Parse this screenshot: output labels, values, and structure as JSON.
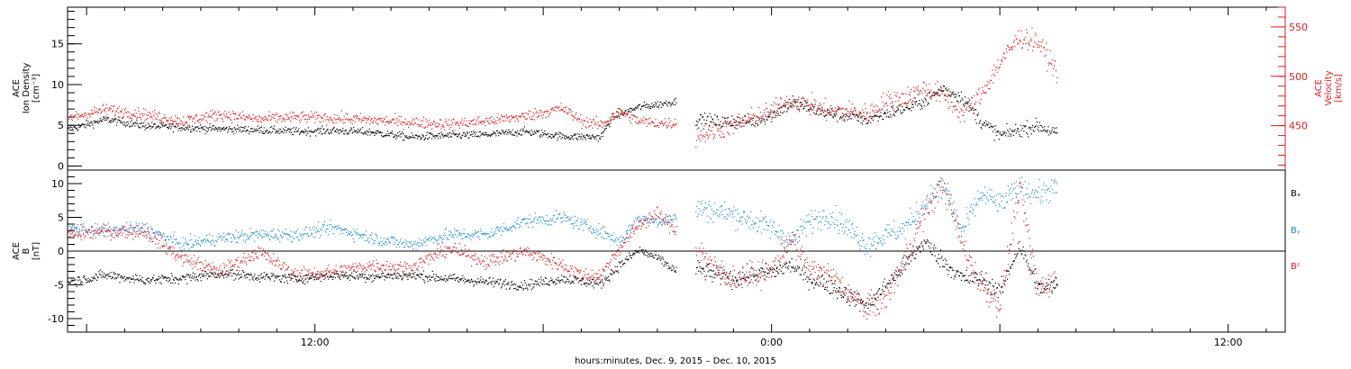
{
  "colors": {
    "black": "#000000",
    "red": "#e41a1c",
    "blue": "#1f8fd8",
    "frame": "#000000"
  },
  "footer": {
    "xlabel": "hours:minutes, Dec.  9, 2015 – Dec. 10, 2015"
  },
  "chart_data": [
    {
      "type": "scatter",
      "panel": "top",
      "title": "",
      "xlabel": "hours:minutes, Dec.  9, 2015 – Dec. 10, 2015",
      "x_range_hours": [
        -18.5,
        13.5
      ],
      "x_ticks": [
        {
          "h": -12,
          "label": "12:00"
        },
        {
          "h": 0,
          "label": "0:00"
        },
        {
          "h": 12,
          "label": "12:00"
        }
      ],
      "ylabel_lines": [
        "ACE",
        "Ion Density",
        "[cm⁻³]"
      ],
      "ylim": [
        -0.5,
        19.5
      ],
      "y_ticks": [
        0,
        5,
        10,
        15
      ],
      "y2label_lines": [
        "ACE",
        "Velocity",
        "[km/s]"
      ],
      "y2lim": [
        405,
        570
      ],
      "y2_ticks": [
        450,
        500,
        550
      ],
      "data_gap_hours": [
        -2.5,
        -2.0
      ],
      "data_end_hour": 7.5,
      "series": [
        {
          "axis": "left",
          "color": "black",
          "points": [
            [
              -18.5,
              4.5
            ],
            [
              -17.5,
              5.8
            ],
            [
              -16.5,
              5.0
            ],
            [
              -15.5,
              4.8
            ],
            [
              -14.5,
              4.6
            ],
            [
              -13.5,
              4.5
            ],
            [
              -12.5,
              4.3
            ],
            [
              -11.5,
              4.4
            ],
            [
              -10.5,
              4.2
            ],
            [
              -9.5,
              3.6
            ],
            [
              -8.5,
              3.8
            ],
            [
              -7.5,
              3.9
            ],
            [
              -6.5,
              4.3
            ],
            [
              -5.5,
              3.7
            ],
            [
              -4.5,
              3.6
            ],
            [
              -4.2,
              6.0
            ],
            [
              -3.5,
              7.3
            ],
            [
              -3.0,
              7.6
            ],
            [
              -2.5,
              8.0
            ],
            [
              -2.0,
              5.8
            ],
            [
              -1.5,
              5.5
            ],
            [
              -1.0,
              5.4
            ],
            [
              -0.5,
              5.6
            ],
            [
              0.0,
              6.3
            ],
            [
              0.5,
              7.8
            ],
            [
              1.0,
              7.2
            ],
            [
              1.5,
              6.5
            ],
            [
              2.0,
              6.2
            ],
            [
              2.5,
              5.8
            ],
            [
              3.0,
              6.5
            ],
            [
              3.5,
              7.2
            ],
            [
              4.0,
              8.0
            ],
            [
              4.5,
              9.5
            ],
            [
              5.0,
              8.5
            ],
            [
              5.5,
              5.5
            ],
            [
              6.0,
              3.8
            ],
            [
              6.5,
              4.5
            ],
            [
              7.0,
              5.0
            ],
            [
              7.5,
              4.0
            ]
          ]
        },
        {
          "axis": "right",
          "color": "red",
          "points": [
            [
              -18.5,
              458
            ],
            [
              -17.5,
              467
            ],
            [
              -16.5,
              462
            ],
            [
              -15.5,
              455
            ],
            [
              -14.5,
              462
            ],
            [
              -13.5,
              457
            ],
            [
              -12.5,
              459
            ],
            [
              -11.5,
              458
            ],
            [
              -10.5,
              456
            ],
            [
              -9.5,
              454
            ],
            [
              -8.5,
              452
            ],
            [
              -7.5,
              455
            ],
            [
              -6.5,
              460
            ],
            [
              -5.5,
              468
            ],
            [
              -5.0,
              455
            ],
            [
              -4.5,
              451
            ],
            [
              -4.0,
              465
            ],
            [
              -3.5,
              455
            ],
            [
              -3.0,
              453
            ],
            [
              -2.5,
              453
            ],
            [
              -2.0,
              440
            ],
            [
              -1.5,
              445
            ],
            [
              -1.0,
              452
            ],
            [
              -0.5,
              458
            ],
            [
              0.0,
              465
            ],
            [
              0.5,
              477
            ],
            [
              1.0,
              471
            ],
            [
              1.5,
              465
            ],
            [
              2.0,
              465
            ],
            [
              2.5,
              462
            ],
            [
              3.0,
              475
            ],
            [
              3.5,
              479
            ],
            [
              4.0,
              488
            ],
            [
              4.5,
              482
            ],
            [
              5.0,
              462
            ],
            [
              5.5,
              482
            ],
            [
              6.0,
              515
            ],
            [
              6.5,
              540
            ],
            [
              7.0,
              535
            ],
            [
              7.5,
              505
            ]
          ]
        }
      ]
    },
    {
      "type": "scatter",
      "panel": "bottom",
      "title": "",
      "xlabel": "hours:minutes, Dec.  9, 2015 – Dec. 10, 2015",
      "x_range_hours": [
        -18.5,
        13.5
      ],
      "ylabel_lines": [
        "ACE",
        "B",
        "[nT]"
      ],
      "ylim": [
        -12,
        12
      ],
      "y_ticks": [
        -10,
        -5,
        0,
        5,
        10
      ],
      "zero_line": true,
      "legend_position": "right",
      "data_gap_hours": [
        -2.5,
        -2.0
      ],
      "data_end_hour": 7.5,
      "series": [
        {
          "name": "Bₓ",
          "color": "black",
          "points": [
            [
              -18.5,
              -4.5
            ],
            [
              -17.5,
              -3.5
            ],
            [
              -16.5,
              -4.2
            ],
            [
              -15.5,
              -4.0
            ],
            [
              -14.5,
              -3.2
            ],
            [
              -13.5,
              -3.7
            ],
            [
              -12.5,
              -4.0
            ],
            [
              -11.5,
              -3.5
            ],
            [
              -10.5,
              -3.7
            ],
            [
              -9.5,
              -3.5
            ],
            [
              -8.5,
              -4.0
            ],
            [
              -7.5,
              -4.5
            ],
            [
              -6.5,
              -5.0
            ],
            [
              -5.5,
              -4.0
            ],
            [
              -4.5,
              -4.8
            ],
            [
              -4.0,
              -2.0
            ],
            [
              -3.5,
              0.2
            ],
            [
              -3.0,
              -1.0
            ],
            [
              -2.5,
              -3.0
            ],
            [
              -2.0,
              -2.5
            ],
            [
              -1.5,
              -3.5
            ],
            [
              -1.0,
              -4.0
            ],
            [
              -0.5,
              -3.5
            ],
            [
              0.0,
              -3.0
            ],
            [
              0.5,
              -2.0
            ],
            [
              1.0,
              -4.0
            ],
            [
              1.5,
              -5.0
            ],
            [
              2.0,
              -6.5
            ],
            [
              2.5,
              -8.0
            ],
            [
              3.0,
              -5.0
            ],
            [
              3.5,
              -2.0
            ],
            [
              4.0,
              1.5
            ],
            [
              4.5,
              -1.5
            ],
            [
              5.0,
              -4.0
            ],
            [
              5.5,
              -4.0
            ],
            [
              6.0,
              -6.0
            ],
            [
              6.5,
              1.0
            ],
            [
              7.0,
              -5.5
            ],
            [
              7.5,
              -5.0
            ]
          ]
        },
        {
          "name": "Bᵧ",
          "color": "blue",
          "points": [
            [
              -18.5,
              3.5
            ],
            [
              -17.5,
              3.0
            ],
            [
              -16.5,
              3.5
            ],
            [
              -15.5,
              1.0
            ],
            [
              -14.5,
              2.0
            ],
            [
              -13.5,
              2.5
            ],
            [
              -12.5,
              2.5
            ],
            [
              -11.5,
              3.5
            ],
            [
              -10.5,
              2.0
            ],
            [
              -9.5,
              1.0
            ],
            [
              -8.5,
              2.5
            ],
            [
              -7.5,
              2.5
            ],
            [
              -6.5,
              4.5
            ],
            [
              -5.5,
              5.0
            ],
            [
              -4.5,
              3.0
            ],
            [
              -4.0,
              1.5
            ],
            [
              -3.5,
              5.0
            ],
            [
              -3.0,
              4.5
            ],
            [
              -2.5,
              5.0
            ],
            [
              -2.0,
              6.5
            ],
            [
              -1.5,
              6.0
            ],
            [
              -1.0,
              5.5
            ],
            [
              -0.5,
              4.5
            ],
            [
              0.0,
              3.5
            ],
            [
              0.5,
              1.5
            ],
            [
              1.0,
              4.5
            ],
            [
              1.5,
              5.5
            ],
            [
              2.0,
              3.5
            ],
            [
              2.5,
              1.0
            ],
            [
              3.0,
              2.5
            ],
            [
              3.5,
              3.5
            ],
            [
              4.0,
              7.0
            ],
            [
              4.5,
              10.0
            ],
            [
              5.0,
              3.0
            ],
            [
              5.5,
              8.5
            ],
            [
              6.0,
              7.0
            ],
            [
              6.5,
              9.5
            ],
            [
              7.0,
              8.5
            ],
            [
              7.5,
              9.5
            ]
          ]
        },
        {
          "name": "Bᶻ",
          "color": "red",
          "points": [
            [
              -18.5,
              2.5
            ],
            [
              -17.5,
              3.0
            ],
            [
              -16.5,
              3.0
            ],
            [
              -15.5,
              -1.0
            ],
            [
              -14.5,
              -3.0
            ],
            [
              -13.5,
              0.0
            ],
            [
              -12.5,
              -3.5
            ],
            [
              -11.5,
              -3.0
            ],
            [
              -10.5,
              -2.0
            ],
            [
              -9.5,
              -2.5
            ],
            [
              -8.5,
              0.5
            ],
            [
              -7.5,
              -1.5
            ],
            [
              -6.5,
              0.0
            ],
            [
              -5.5,
              -2.0
            ],
            [
              -5.0,
              -3.5
            ],
            [
              -4.5,
              -3.5
            ],
            [
              -4.0,
              0.5
            ],
            [
              -3.5,
              4.0
            ],
            [
              -3.0,
              5.5
            ],
            [
              -2.5,
              3.0
            ],
            [
              -2.0,
              1.0
            ],
            [
              -1.5,
              -2.5
            ],
            [
              -1.0,
              -4.0
            ],
            [
              -0.5,
              -3.5
            ],
            [
              0.0,
              -3.0
            ],
            [
              0.5,
              2.0
            ],
            [
              1.0,
              -2.5
            ],
            [
              1.5,
              -3.5
            ],
            [
              2.0,
              -6.0
            ],
            [
              2.5,
              -8.5
            ],
            [
              3.0,
              -7.0
            ],
            [
              3.5,
              -1.0
            ],
            [
              4.0,
              5.5
            ],
            [
              4.5,
              10.0
            ],
            [
              5.0,
              1.0
            ],
            [
              5.5,
              -5.0
            ],
            [
              6.0,
              -8.0
            ],
            [
              6.5,
              9.5
            ],
            [
              7.0,
              -5.5
            ],
            [
              7.5,
              -4.0
            ]
          ]
        }
      ]
    }
  ]
}
